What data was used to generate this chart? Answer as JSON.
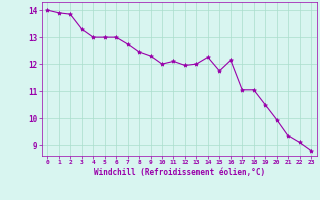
{
  "x": [
    0,
    1,
    2,
    3,
    4,
    5,
    6,
    7,
    8,
    9,
    10,
    11,
    12,
    13,
    14,
    15,
    16,
    17,
    18,
    19,
    20,
    21,
    22,
    23
  ],
  "y": [
    14.0,
    13.9,
    13.85,
    13.3,
    13.0,
    13.0,
    13.0,
    12.75,
    12.45,
    12.3,
    12.0,
    12.1,
    11.95,
    12.0,
    12.25,
    11.75,
    12.15,
    11.05,
    11.05,
    10.5,
    9.95,
    9.35,
    9.1,
    8.8
  ],
  "line_color": "#9900aa",
  "marker": "*",
  "marker_size": 3,
  "bg_color": "#d8f5f0",
  "grid_color": "#aaddcc",
  "ylim": [
    8.6,
    14.3
  ],
  "yticks": [
    9,
    10,
    11,
    12,
    13,
    14
  ],
  "xlim": [
    -0.5,
    23.5
  ],
  "xticks": [
    0,
    1,
    2,
    3,
    4,
    5,
    6,
    7,
    8,
    9,
    10,
    11,
    12,
    13,
    14,
    15,
    16,
    17,
    18,
    19,
    20,
    21,
    22,
    23
  ],
  "xlabel": "Windchill (Refroidissement éolien,°C)",
  "xlabel_color": "#9900aa",
  "tick_color": "#9900aa",
  "title": ""
}
